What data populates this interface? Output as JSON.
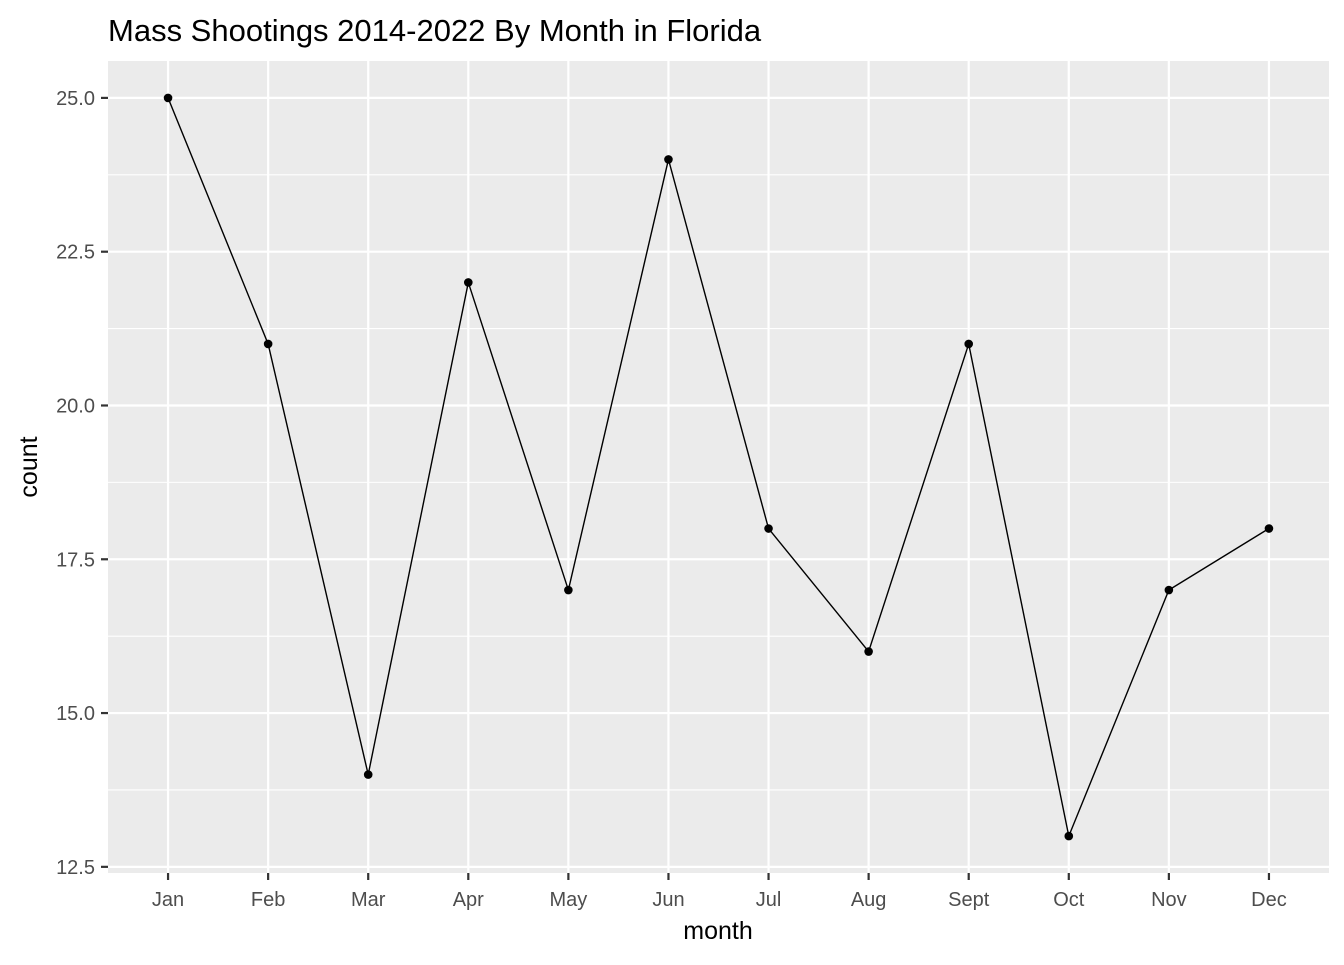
{
  "chart_data": {
    "type": "line",
    "title": "Mass Shootings 2014-2022 By Month in Florida",
    "xlabel": "month",
    "ylabel": "count",
    "categories": [
      "Jan",
      "Feb",
      "Mar",
      "Apr",
      "May",
      "Jun",
      "Jul",
      "Aug",
      "Sept",
      "Oct",
      "Nov",
      "Dec"
    ],
    "values": [
      25,
      21,
      14,
      22,
      17,
      24,
      18,
      16,
      21,
      13,
      17,
      18
    ],
    "ylim": [
      12.4,
      25.6
    ],
    "yticks": [
      12.5,
      15.0,
      17.5,
      20.0,
      22.5,
      25.0
    ],
    "ytick_labels": [
      "12.5",
      "15.0",
      "17.5",
      "20.0",
      "22.5",
      "25.0"
    ],
    "grid": true,
    "markers": true,
    "legend": "none",
    "colors": {
      "panel_background": "#EBEBEB",
      "grid_major": "#FFFFFF",
      "line": "#000000",
      "point": "#000000",
      "tick_text": "#4D4D4D",
      "tick_mark": "#333333",
      "title_text": "#000000"
    }
  }
}
